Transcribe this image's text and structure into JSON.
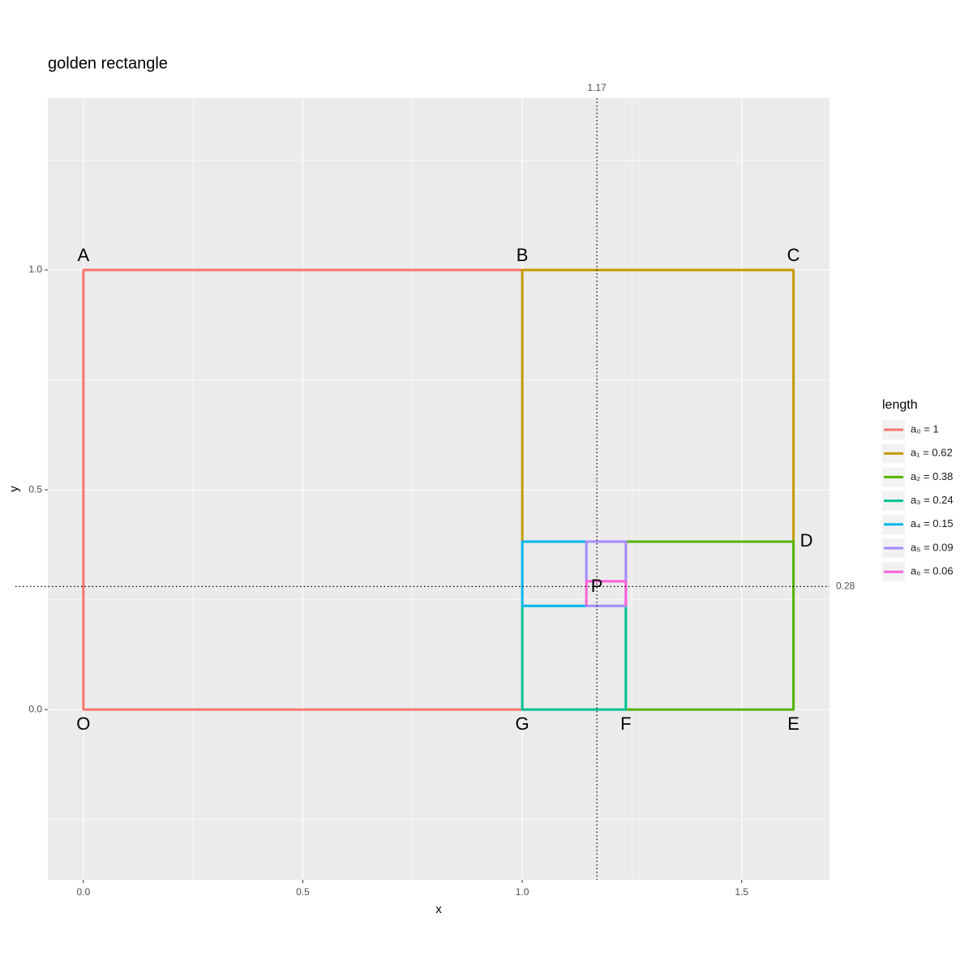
{
  "chart_data": {
    "type": "line",
    "title": "golden rectangle",
    "x_label": "x",
    "y_label": "y",
    "legend_title": "length",
    "legend_position": "right",
    "xlim": [
      -0.081,
      1.7
    ],
    "ylim": [
      -0.387,
      1.391
    ],
    "xticks": [
      {
        "value": 0,
        "label": "0.0"
      },
      {
        "value": 0.5,
        "label": "0.5"
      },
      {
        "value": 1,
        "label": "1.0"
      },
      {
        "value": 1.5,
        "label": "1.5"
      }
    ],
    "yticks": [
      {
        "value": 0,
        "label": "0.0"
      },
      {
        "value": 0.5,
        "label": "0.5"
      },
      {
        "value": 1,
        "label": "1.0"
      }
    ],
    "minor_xticks": [
      0.25,
      0.75,
      1.25
    ],
    "minor_yticks": [
      -0.25,
      0.25,
      0.75,
      1.25
    ],
    "grid": true,
    "series": [
      {
        "name": "a₀ = 1",
        "color": "#F8766D",
        "x": [
          1,
          0,
          0,
          1
        ],
        "values": [
          1,
          1,
          0,
          0
        ]
      },
      {
        "name": "a₁ = 0.62",
        "color": "#C49A00",
        "x": [
          1,
          1,
          1.618,
          1.618
        ],
        "values": [
          0.382,
          1,
          1,
          0.382
        ]
      },
      {
        "name": "a₂ = 0.38",
        "color": "#53B400",
        "x": [
          1.236,
          1.618,
          1.618,
          1.236
        ],
        "values": [
          0.382,
          0.382,
          0,
          0
        ]
      },
      {
        "name": "a₃ = 0.24",
        "color": "#00C094",
        "x": [
          1.236,
          1.236,
          1,
          1
        ],
        "values": [
          0.236,
          0,
          0,
          0.236
        ]
      },
      {
        "name": "a₄ = 0.15",
        "color": "#00B6EB",
        "x": [
          1.146,
          1,
          1,
          1.146
        ],
        "values": [
          0.382,
          0.382,
          0.236,
          0.236
        ]
      },
      {
        "name": "a₅ = 0.09",
        "color": "#A58AFF",
        "x": [
          1.146,
          1.146,
          1.236,
          1.236,
          1.146
        ],
        "values": [
          0.292,
          0.382,
          0.382,
          0.236,
          0.236
        ]
      },
      {
        "name": "a₆ = 0.06",
        "color": "#FB61D7",
        "x": [
          1.146,
          1.146,
          1.236,
          1.236
        ],
        "values": [
          0.236,
          0.292,
          0.292,
          0.236
        ]
      }
    ],
    "points": [
      {
        "label": "A",
        "x": 0,
        "y": 1
      },
      {
        "label": "B",
        "x": 1,
        "y": 1
      },
      {
        "label": "C",
        "x": 1.618,
        "y": 1
      },
      {
        "label": "D",
        "x": 1.618,
        "y": 0.382
      },
      {
        "label": "E",
        "x": 1.618,
        "y": 0
      },
      {
        "label": "F",
        "x": 1.236,
        "y": 0
      },
      {
        "label": "G",
        "x": 1,
        "y": 0
      },
      {
        "label": "O",
        "x": 0,
        "y": 0
      },
      {
        "label": "P",
        "x": 1.17,
        "y": 0.28
      }
    ],
    "vline": 1.17,
    "hline": 0.28
  }
}
